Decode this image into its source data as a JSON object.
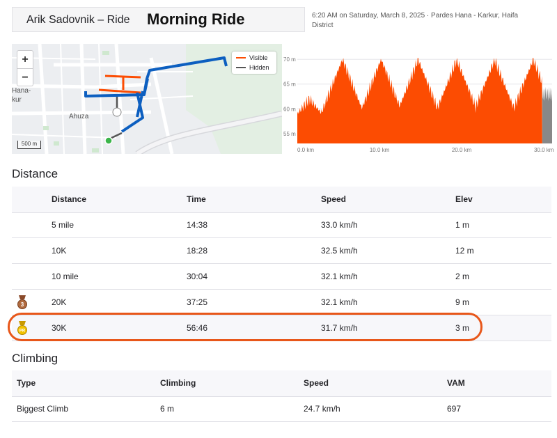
{
  "header": {
    "athlete_ride": "Arik Sadovnik – Ride",
    "title": "Morning Ride",
    "meta": "6:20 AM on Saturday, March 8, 2025 · Pardes Hana - Karkur, Haifa District"
  },
  "map": {
    "zoom_in": "+",
    "zoom_out": "−",
    "legend": [
      {
        "label": "Visible",
        "color": "#fc4c02"
      },
      {
        "label": "Hidden",
        "color": "#555555"
      }
    ],
    "scale": "500 m",
    "labels": {
      "hana": "Hana-",
      "kur": "kur",
      "ahuza": "Ahuza"
    },
    "route_color": "#0d5fc0"
  },
  "elevation": {
    "y_ticks": [
      "70 m",
      "65 m",
      "60 m",
      "55 m"
    ],
    "x_ticks": [
      "0.0 km",
      "10.0 km",
      "20.0 km",
      "30.0 km"
    ],
    "fill_color": "#fc4c02",
    "hidden_color": "#888888",
    "y_range": [
      53,
      72
    ],
    "x_range": [
      0,
      31
    ],
    "peaks_km": [
      5.5,
      10.2,
      14.7,
      19.4,
      24.0,
      28.7
    ],
    "peak_elev_m": 70
  },
  "distance": {
    "title": "Distance",
    "columns": [
      "Distance",
      "Time",
      "Speed",
      "Elev"
    ],
    "rows": [
      {
        "distance": "5 mile",
        "time": "14:38",
        "speed": "33.0 km/h",
        "elev": "1 m",
        "badge": ""
      },
      {
        "distance": "10K",
        "time": "18:28",
        "speed": "32.5 km/h",
        "elev": "12 m",
        "badge": ""
      },
      {
        "distance": "10 mile",
        "time": "30:04",
        "speed": "32.1 km/h",
        "elev": "2 m",
        "badge": ""
      },
      {
        "distance": "20K",
        "time": "37:25",
        "speed": "32.1 km/h",
        "elev": "9 m",
        "badge": "3"
      },
      {
        "distance": "30K",
        "time": "56:46",
        "speed": "31.7 km/h",
        "elev": "3 m",
        "badge": "PR"
      }
    ]
  },
  "climbing": {
    "title": "Climbing",
    "columns": [
      "Type",
      "Climbing",
      "Speed",
      "VAM"
    ],
    "rows": [
      {
        "type": "Biggest Climb",
        "climbing": "6 m",
        "speed": "24.7 km/h",
        "vam": "697"
      }
    ]
  }
}
